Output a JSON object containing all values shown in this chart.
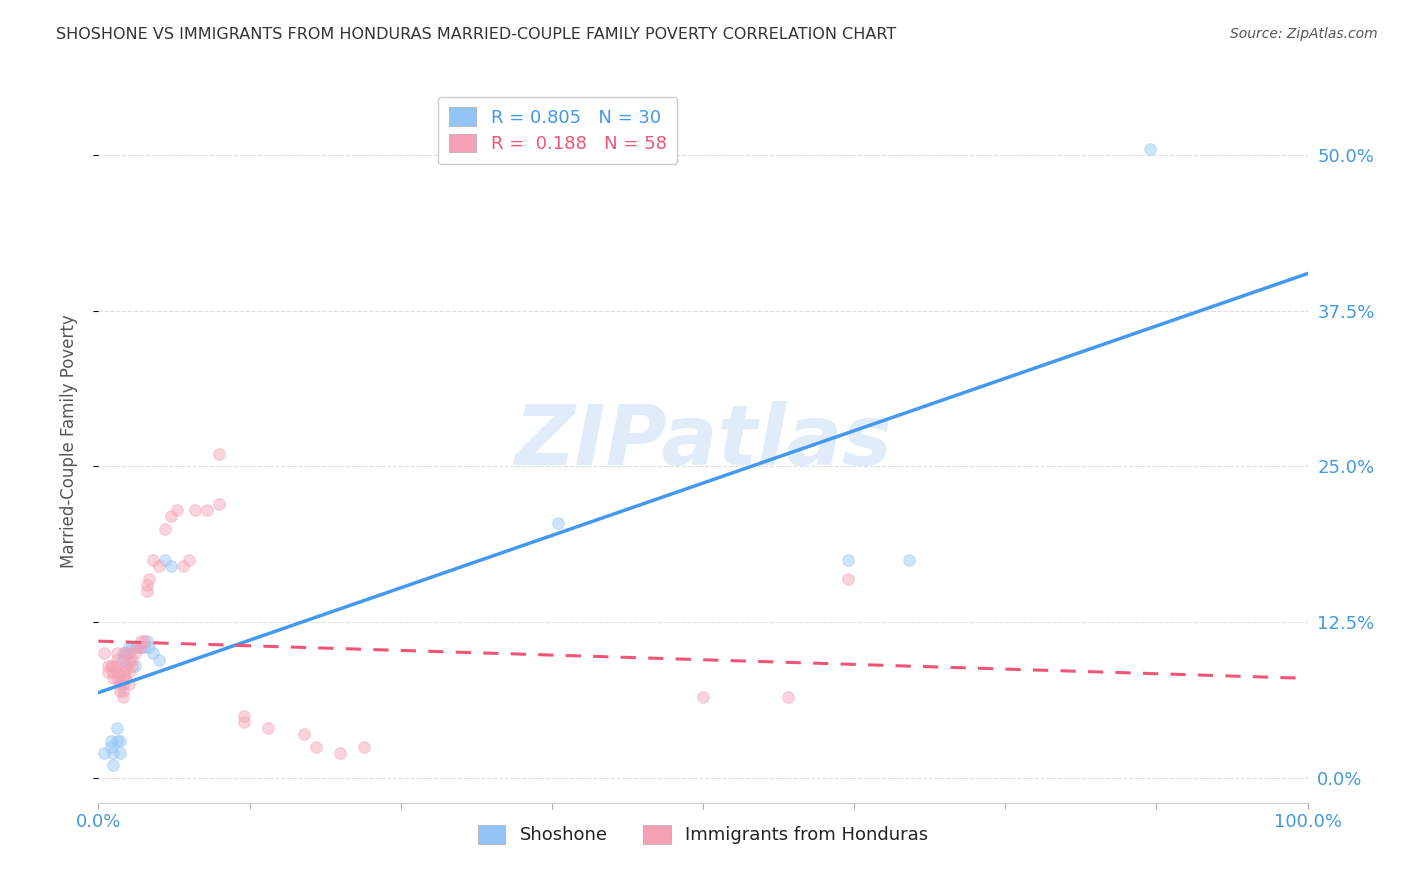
{
  "title": "SHOSHONE VS IMMIGRANTS FROM HONDURAS MARRIED-COUPLE FAMILY POVERTY CORRELATION CHART",
  "source": "Source: ZipAtlas.com",
  "ylabel": "Married-Couple Family Poverty",
  "ytick_labels": [
    "0.0%",
    "12.5%",
    "25.0%",
    "37.5%",
    "50.0%"
  ],
  "ytick_values": [
    0.0,
    0.125,
    0.25,
    0.375,
    0.5
  ],
  "xlim": [
    0.0,
    1.0
  ],
  "ylim": [
    -0.02,
    0.56
  ],
  "series_shoshone": {
    "color": "#92C5F5",
    "R": 0.805,
    "N": 30,
    "x": [
      0.005,
      0.01,
      0.01,
      0.012,
      0.012,
      0.015,
      0.015,
      0.018,
      0.018,
      0.02,
      0.02,
      0.022,
      0.022,
      0.025,
      0.025,
      0.028,
      0.03,
      0.032,
      0.035,
      0.038,
      0.04,
      0.042,
      0.045,
      0.05,
      0.055,
      0.06,
      0.38,
      0.62,
      0.67,
      0.87
    ],
    "y": [
      0.02,
      0.025,
      0.03,
      0.01,
      0.02,
      0.03,
      0.04,
      0.02,
      0.03,
      0.095,
      0.1,
      0.095,
      0.1,
      0.1,
      0.105,
      0.105,
      0.09,
      0.105,
      0.105,
      0.105,
      0.11,
      0.105,
      0.1,
      0.095,
      0.175,
      0.17,
      0.205,
      0.175,
      0.175,
      0.505
    ]
  },
  "series_honduras": {
    "color": "#F5A0B5",
    "R": 0.188,
    "N": 58,
    "x": [
      0.005,
      0.008,
      0.008,
      0.01,
      0.012,
      0.012,
      0.012,
      0.015,
      0.015,
      0.015,
      0.015,
      0.015,
      0.018,
      0.018,
      0.018,
      0.02,
      0.02,
      0.02,
      0.02,
      0.022,
      0.022,
      0.022,
      0.022,
      0.025,
      0.025,
      0.025,
      0.025,
      0.028,
      0.028,
      0.03,
      0.032,
      0.035,
      0.035,
      0.038,
      0.04,
      0.04,
      0.042,
      0.045,
      0.05,
      0.055,
      0.06,
      0.065,
      0.07,
      0.075,
      0.08,
      0.09,
      0.1,
      0.1,
      0.12,
      0.12,
      0.14,
      0.17,
      0.18,
      0.2,
      0.22,
      0.5,
      0.57,
      0.62
    ],
    "y": [
      0.1,
      0.085,
      0.09,
      0.09,
      0.08,
      0.085,
      0.09,
      0.08,
      0.085,
      0.09,
      0.095,
      0.1,
      0.07,
      0.075,
      0.08,
      0.065,
      0.07,
      0.075,
      0.085,
      0.08,
      0.085,
      0.09,
      0.1,
      0.075,
      0.085,
      0.095,
      0.1,
      0.09,
      0.095,
      0.1,
      0.105,
      0.105,
      0.11,
      0.11,
      0.15,
      0.155,
      0.16,
      0.175,
      0.17,
      0.2,
      0.21,
      0.215,
      0.17,
      0.175,
      0.215,
      0.215,
      0.22,
      0.26,
      0.045,
      0.05,
      0.04,
      0.035,
      0.025,
      0.02,
      0.025,
      0.065,
      0.065,
      0.16
    ]
  },
  "line_shoshone_color": "#4499EE",
  "line_honduras_color": "#EE5577",
  "watermark_text": "ZIPatlas",
  "watermark_color": "#cce0f5",
  "watermark_alpha": 0.6,
  "background_color": "#ffffff",
  "grid_color": "#dddddd",
  "title_color": "#333333",
  "axis_label_color": "#555555",
  "tick_color": "#4499dd",
  "bottom_label_color": "#222222",
  "marker_size": 70,
  "marker_alpha": 0.45,
  "line_width": 2.2
}
